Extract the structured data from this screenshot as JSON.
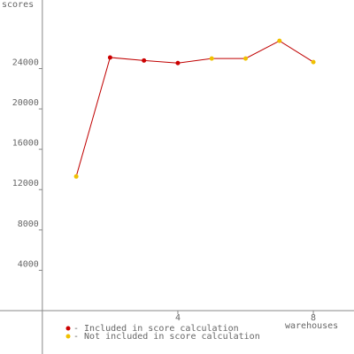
{
  "chart_data": {
    "type": "line",
    "y_label": "scores",
    "x_label": "warehouses",
    "x": [
      1,
      2,
      3,
      4,
      5,
      6,
      7,
      8
    ],
    "values": [
      13300,
      25100,
      24800,
      24550,
      25000,
      25000,
      26750,
      24650
    ],
    "line_color": "#c00000",
    "point_colors": [
      "#f0c000",
      "#cc0000",
      "#cc0000",
      "#cc0000",
      "#f0c000",
      "#f0c000",
      "#f0c000",
      "#f0c000"
    ],
    "legend": [
      {
        "name": "- Included in score calculation",
        "color": "#cc0000"
      },
      {
        "name": "- Not included in score calculation",
        "color": "#f0c000"
      }
    ],
    "xlim": [
      -1.25,
      9.2
    ],
    "ylim": [
      -4300,
      30800
    ],
    "xticks": [
      4,
      8
    ],
    "yticks": [
      4000,
      8000,
      12000,
      16000,
      20000,
      24000
    ],
    "grid": false
  }
}
